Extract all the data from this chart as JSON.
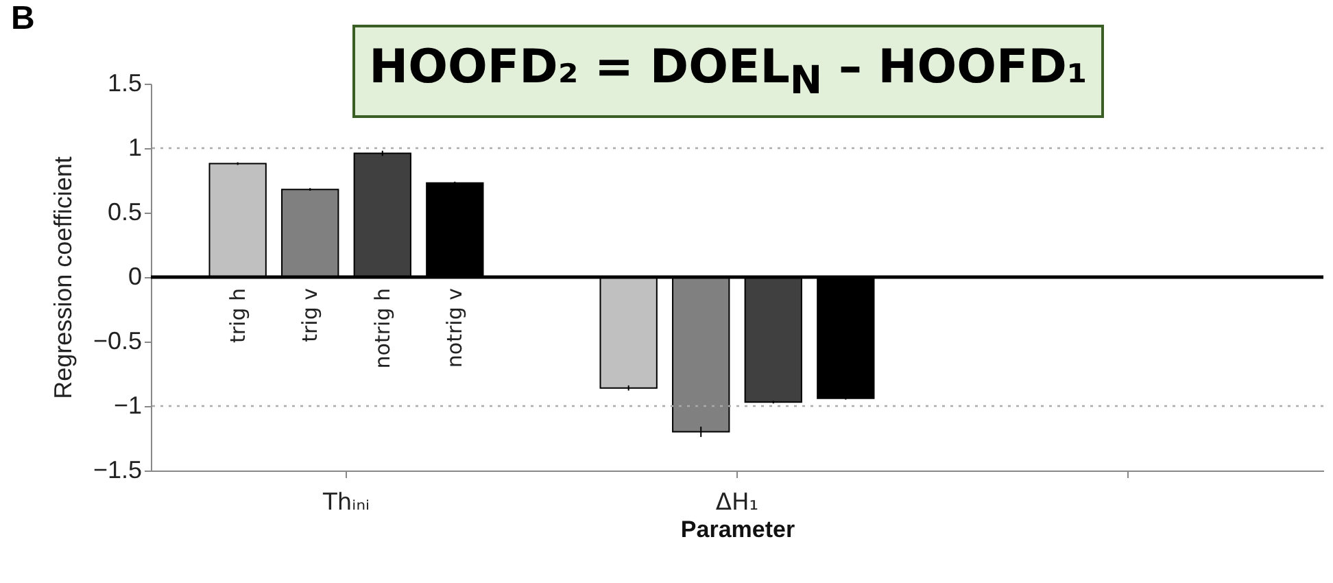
{
  "chart_data": {
    "type": "bar",
    "xlabel": "Parameter",
    "ylabel": "Regression coefficient",
    "categories": [
      "Thᵢₙᵢ",
      "ΔH₁",
      null
    ],
    "series": [
      {
        "name": "trig h",
        "color": "#c0c0c0",
        "values": [
          0.88,
          -0.86,
          null
        ],
        "errors": [
          0.01,
          0.02,
          null
        ]
      },
      {
        "name": "trig v",
        "color": "#808080",
        "values": [
          0.68,
          -1.2,
          null
        ],
        "errors": [
          0.01,
          0.04,
          null
        ]
      },
      {
        "name": "notrig h",
        "color": "#404040",
        "values": [
          0.96,
          -0.97,
          null
        ],
        "errors": [
          0.02,
          0.01,
          null
        ]
      },
      {
        "name": "notrig v",
        "color": "#000000",
        "values": [
          0.73,
          -0.94,
          null
        ],
        "errors": [
          0.01,
          0.01,
          null
        ]
      }
    ],
    "ylim": [
      -1.5,
      1.5
    ],
    "yticks": [
      -1.5,
      -1,
      -0.5,
      0,
      0.5,
      1,
      1.5
    ],
    "grid": false,
    "legend": false,
    "ref_lines": [
      {
        "axis": "y",
        "value": 1,
        "line_style": "dotted",
        "color": "#aaaaaa"
      },
      {
        "axis": "y",
        "value": -1,
        "line_style": "dotted",
        "color": "#aaaaaa"
      },
      {
        "axis": "y",
        "value": 0,
        "line_style": "solid",
        "color": "#000000"
      }
    ],
    "annotations": [
      "B",
      "HOOFD₂ = DOEL$_{N}$ – HOOFD₁"
    ]
  }
}
